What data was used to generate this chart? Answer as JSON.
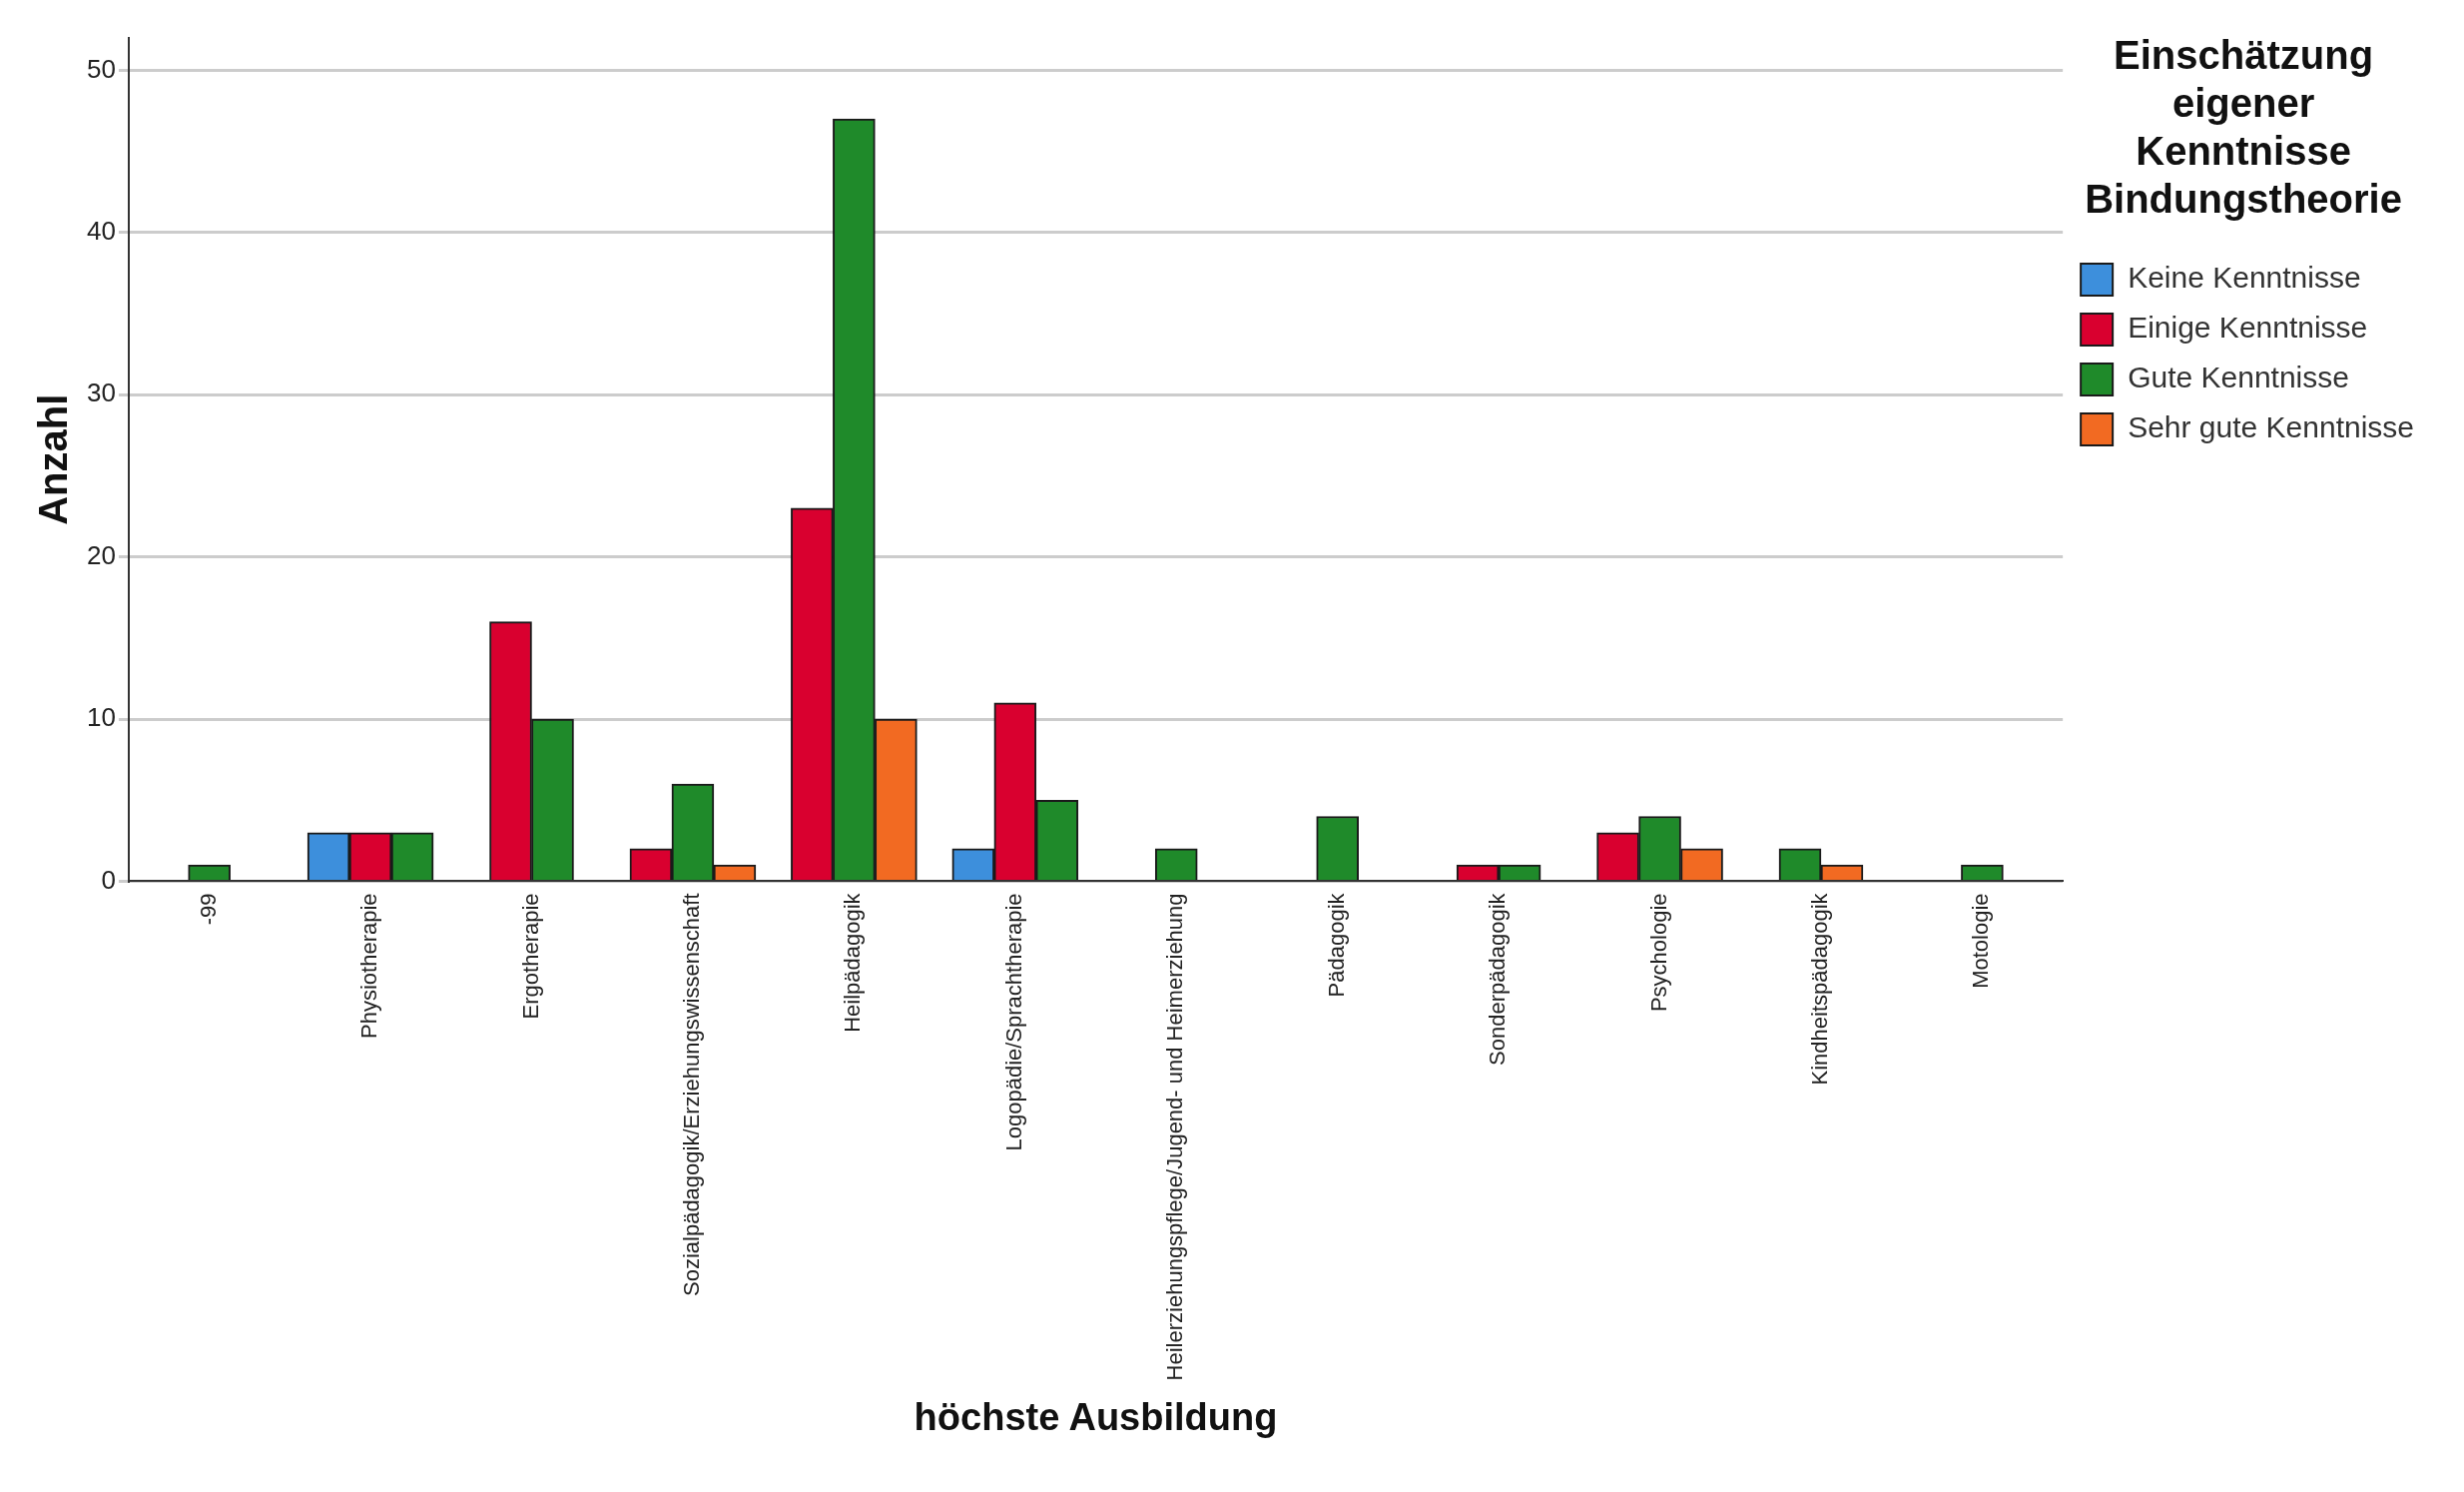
{
  "chart_data": {
    "type": "bar",
    "xlabel": "höchste Ausbildung",
    "ylabel": "Anzahl",
    "legend_title": "Einschätzung eigener Kenntnisse Bindungstheorie",
    "categories": [
      "-99",
      "Physiotherapie",
      "Ergotherapie",
      "Sozialpädagogik/Erziehungswissenschaft",
      "Heilpädagogik",
      "Logopädie/Sprachtherapie",
      "Heilerziehungspflege/Jugend- und Heimerziehung",
      "Pädagogik",
      "Sonderpädagogik",
      "Psychologie",
      "Kindheitspädagogik",
      "Motologie"
    ],
    "series": [
      {
        "name": "Keine Kenntnisse",
        "color": "#3d8fdc",
        "values": [
          null,
          3,
          null,
          null,
          null,
          2,
          null,
          null,
          null,
          null,
          null,
          null
        ]
      },
      {
        "name": "Einige Kenntnisse",
        "color": "#d9002f",
        "values": [
          null,
          3,
          16,
          2,
          23,
          11,
          null,
          null,
          1,
          3,
          null,
          null
        ]
      },
      {
        "name": "Gute Kenntnisse",
        "color": "#1f8a2a",
        "values": [
          1,
          3,
          10,
          6,
          47,
          5,
          2,
          4,
          1,
          4,
          2,
          1
        ]
      },
      {
        "name": "Sehr gute Kenntnisse",
        "color": "#f26a22",
        "values": [
          null,
          null,
          null,
          1,
          10,
          null,
          null,
          null,
          null,
          2,
          1,
          null
        ]
      }
    ],
    "ylim": [
      0,
      52
    ],
    "yticks": [
      0,
      10,
      20,
      30,
      40,
      50
    ],
    "grid": "y",
    "legend": "right"
  }
}
